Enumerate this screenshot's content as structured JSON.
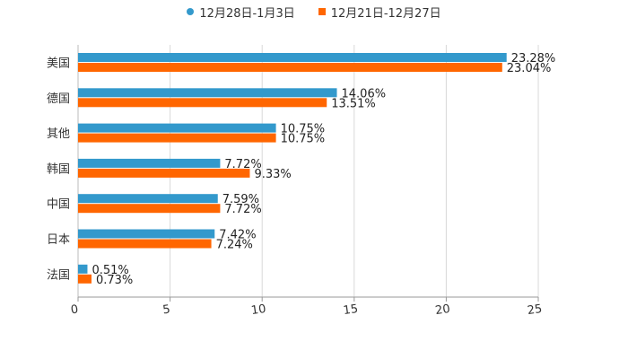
{
  "chart_data": {
    "type": "bar",
    "orientation": "horizontal",
    "categories": [
      "美国",
      "德国",
      "其他",
      "韩国",
      "中国",
      "日本",
      "法国"
    ],
    "series": [
      {
        "name": "12月28日-1月3日",
        "color": "#3399cc",
        "values": [
          23.28,
          14.06,
          10.75,
          7.72,
          7.59,
          7.42,
          0.51
        ],
        "labels": [
          "23.28%",
          "14.06%",
          "10.75%",
          "7.72%",
          "7.59%",
          "7.42%",
          "0.51%"
        ]
      },
      {
        "name": "12月21日-12月27日",
        "color": "#ff6600",
        "values": [
          23.04,
          13.51,
          10.75,
          9.33,
          7.72,
          7.24,
          0.73
        ],
        "labels": [
          "23.04%",
          "13.51%",
          "10.75%",
          "9.33%",
          "7.72%",
          "7.24%",
          "0.73%"
        ]
      }
    ],
    "xlim": [
      0,
      25
    ],
    "xticks": [
      0,
      5,
      10,
      15,
      20,
      25
    ],
    "xtick_labels": [
      "0",
      "5",
      "10",
      "15",
      "20",
      "25"
    ],
    "grid": "vertical",
    "legend_position": "top-center"
  },
  "legend": {
    "series1_label": "12月28日-1月3日",
    "series2_label": "12月21日-12月27日"
  }
}
